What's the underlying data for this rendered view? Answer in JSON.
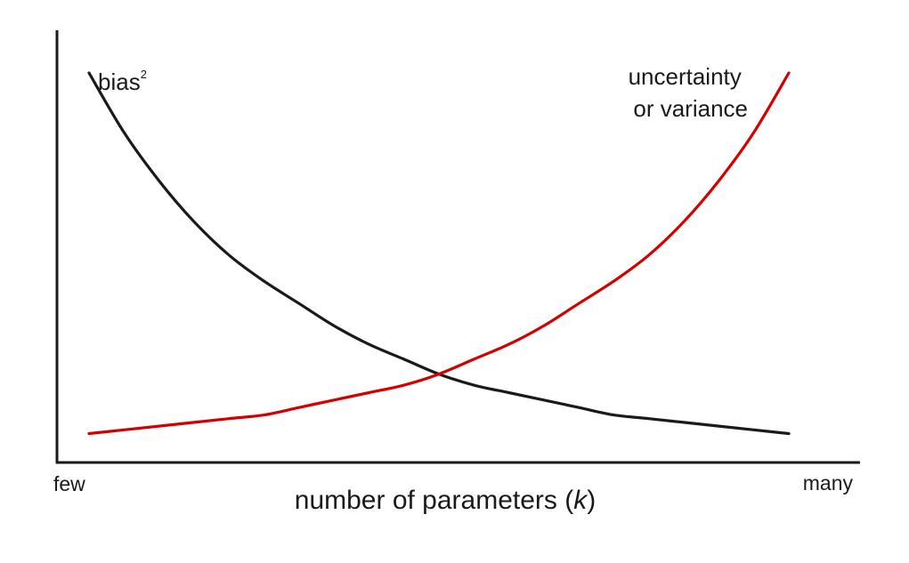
{
  "chart_data": {
    "type": "line",
    "xlabel": {
      "before": "number of parameters (",
      "italic": "k",
      "after": ")"
    },
    "ylabel": "",
    "x_tick_labels": {
      "start": "few",
      "end": "many"
    },
    "grid": false,
    "xlim": [
      0,
      1
    ],
    "ylim": [
      0,
      1
    ],
    "series": [
      {
        "name": "bias",
        "superscript": "2",
        "color": "#1a1a1a",
        "x": [
          0.0,
          0.05,
          0.1,
          0.15,
          0.2,
          0.25,
          0.3,
          0.35,
          0.4,
          0.45,
          0.5,
          0.55,
          0.6,
          0.65,
          0.7,
          0.75,
          0.8,
          0.85,
          0.9,
          0.95,
          1.0
        ],
        "y": [
          1.0,
          0.84,
          0.71,
          0.6,
          0.51,
          0.44,
          0.38,
          0.32,
          0.27,
          0.23,
          0.19,
          0.16,
          0.14,
          0.12,
          0.1,
          0.08,
          0.07,
          0.06,
          0.05,
          0.04,
          0.03
        ]
      },
      {
        "name_lines": [
          "uncertainty",
          "or variance"
        ],
        "color": "#d40000",
        "x": [
          0.0,
          0.05,
          0.1,
          0.15,
          0.2,
          0.25,
          0.3,
          0.35,
          0.4,
          0.45,
          0.5,
          0.55,
          0.6,
          0.65,
          0.7,
          0.75,
          0.8,
          0.85,
          0.9,
          0.95,
          1.0
        ],
        "y": [
          0.03,
          0.04,
          0.05,
          0.06,
          0.07,
          0.08,
          0.1,
          0.12,
          0.14,
          0.16,
          0.19,
          0.23,
          0.27,
          0.32,
          0.38,
          0.44,
          0.51,
          0.6,
          0.71,
          0.84,
          1.0
        ]
      }
    ]
  }
}
